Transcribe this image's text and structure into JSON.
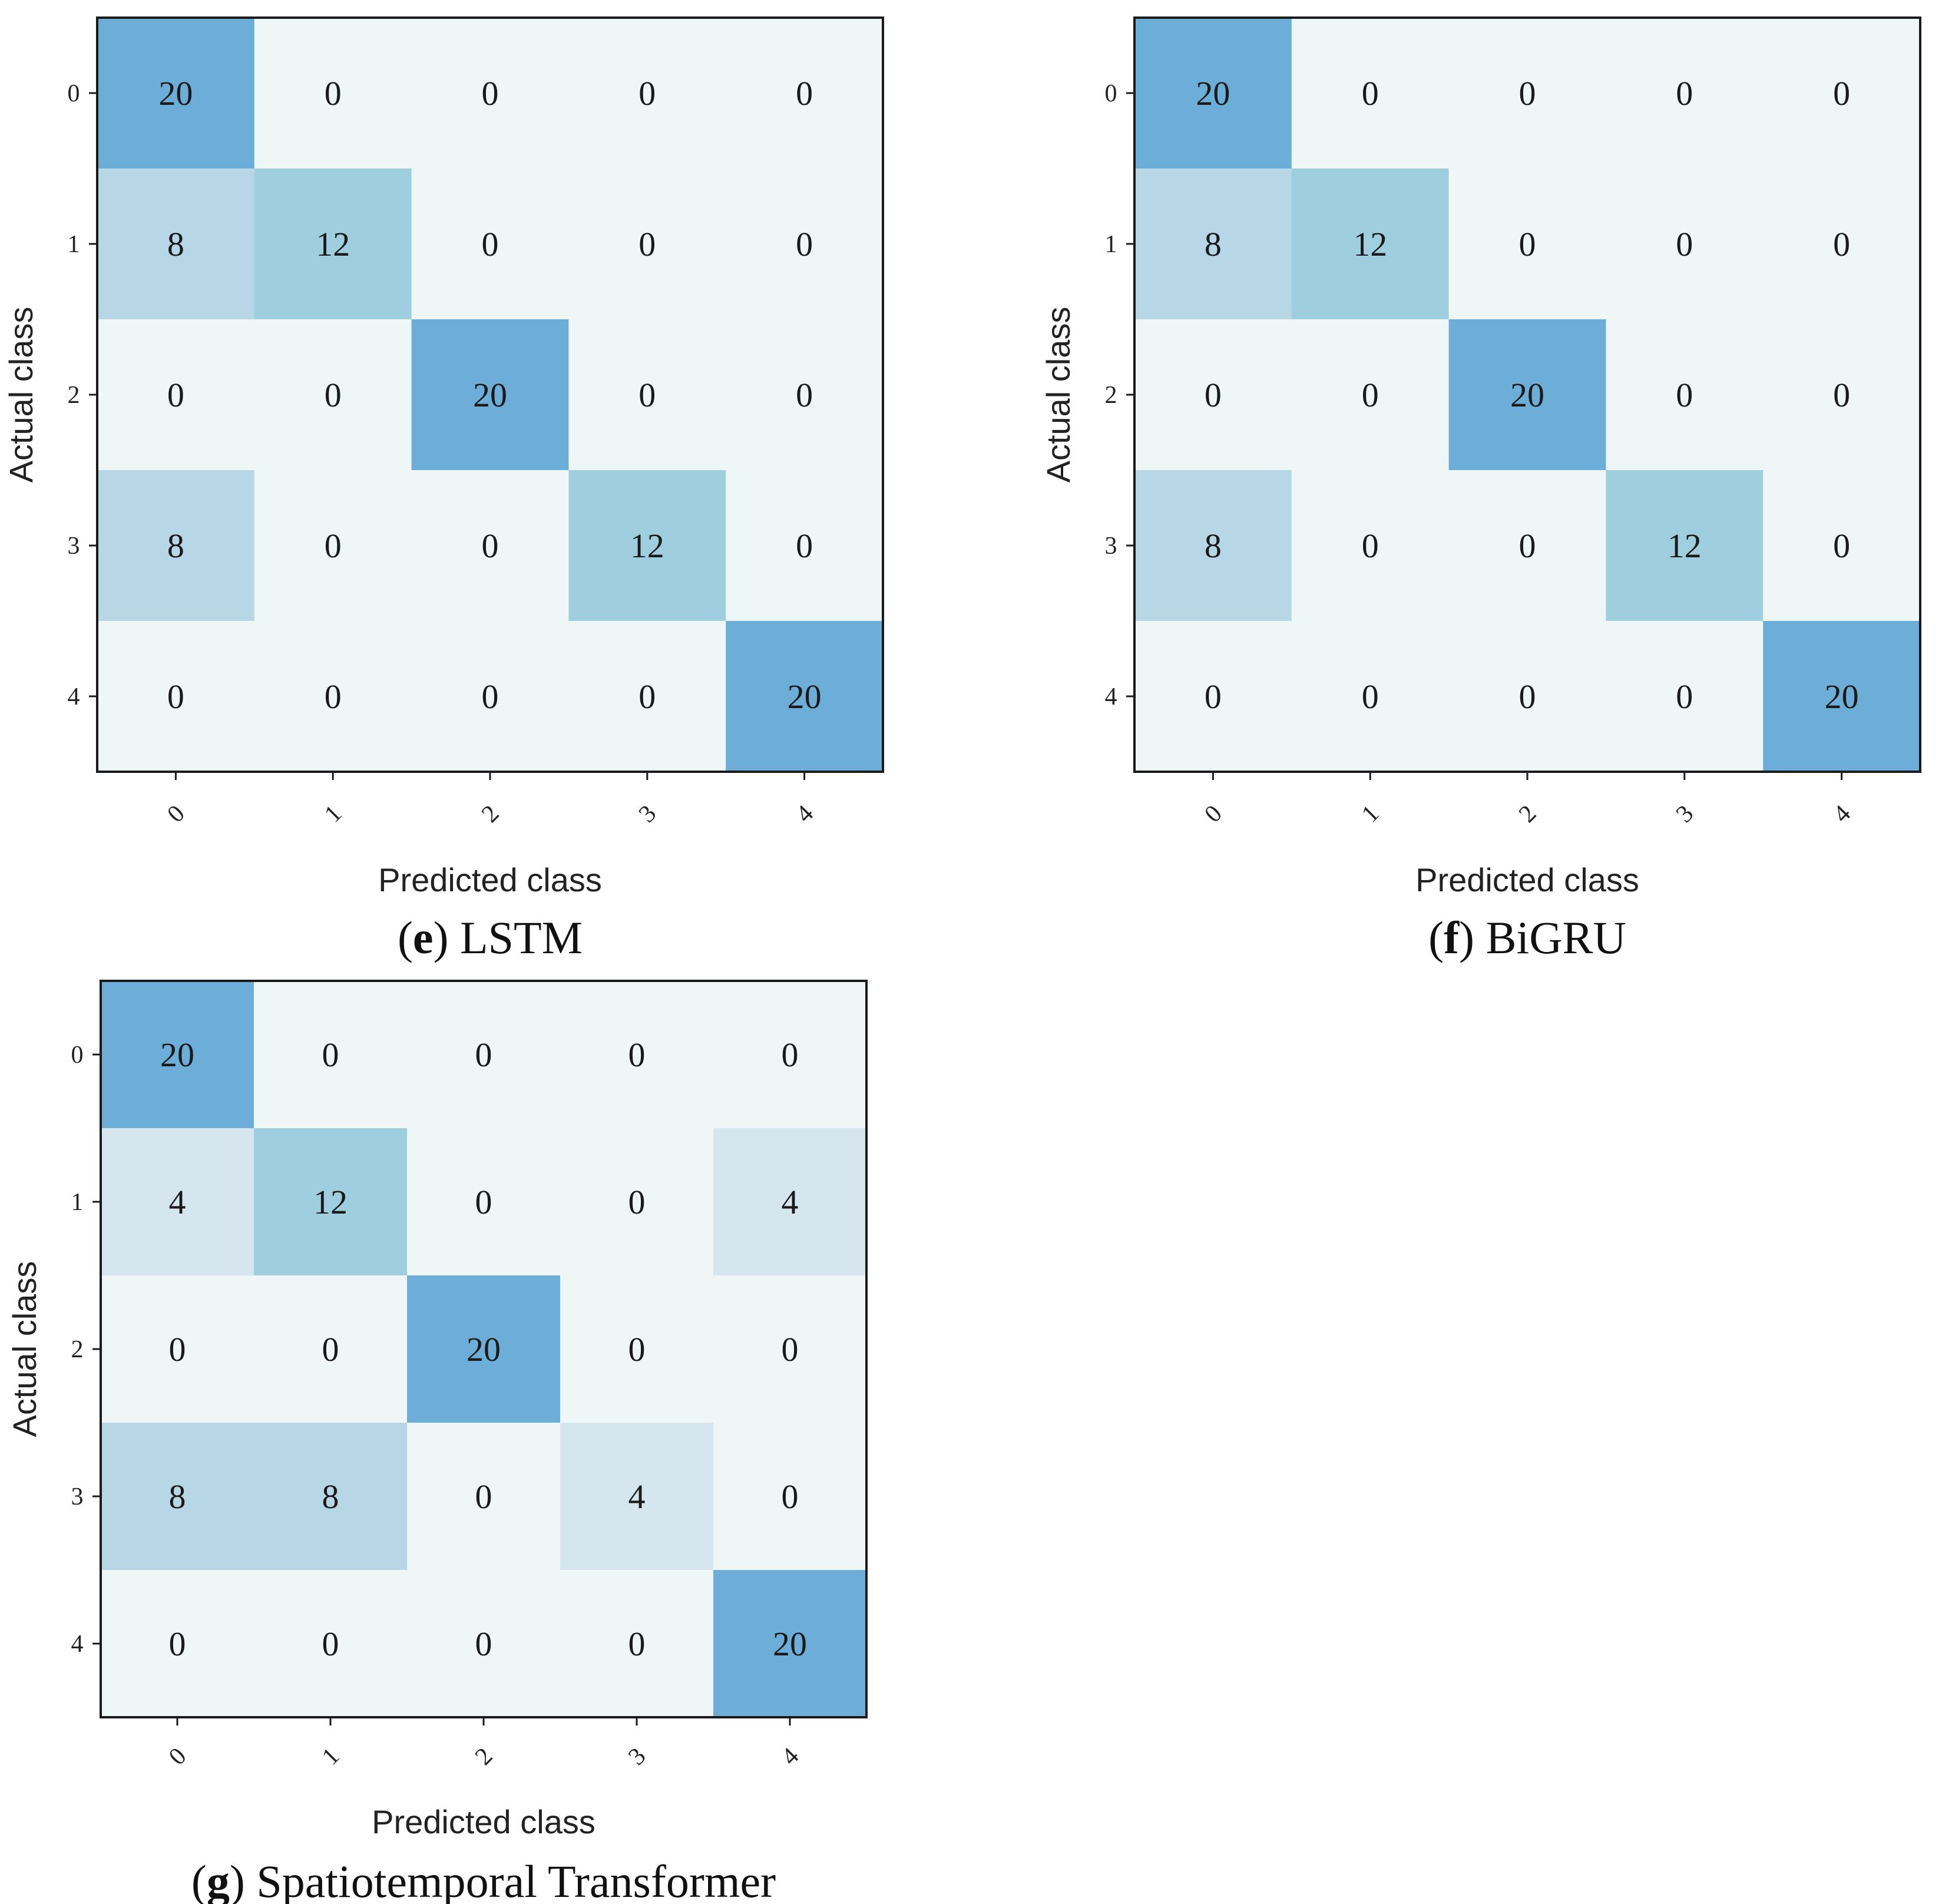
{
  "chart_data": [
    {
      "type": "heatmap",
      "panel": "e",
      "title": "LSTM",
      "xlabel": "Predicted class",
      "ylabel": "Actual class",
      "x_ticks": [
        "0",
        "1",
        "2",
        "3",
        "4"
      ],
      "y_ticks": [
        "0",
        "1",
        "2",
        "3",
        "4"
      ],
      "matrix": [
        [
          20,
          0,
          0,
          0,
          0
        ],
        [
          8,
          12,
          0,
          0,
          0
        ],
        [
          0,
          0,
          20,
          0,
          0
        ],
        [
          8,
          0,
          0,
          12,
          0
        ],
        [
          0,
          0,
          0,
          0,
          20
        ]
      ],
      "value_range": [
        0,
        20
      ]
    },
    {
      "type": "heatmap",
      "panel": "f",
      "title": "BiGRU",
      "xlabel": "Predicted class",
      "ylabel": "Actual class",
      "x_ticks": [
        "0",
        "1",
        "2",
        "3",
        "4"
      ],
      "y_ticks": [
        "0",
        "1",
        "2",
        "3",
        "4"
      ],
      "matrix": [
        [
          20,
          0,
          0,
          0,
          0
        ],
        [
          8,
          12,
          0,
          0,
          0
        ],
        [
          0,
          0,
          20,
          0,
          0
        ],
        [
          8,
          0,
          0,
          12,
          0
        ],
        [
          0,
          0,
          0,
          0,
          20
        ]
      ],
      "value_range": [
        0,
        20
      ]
    },
    {
      "type": "heatmap",
      "panel": "g",
      "title": "Spatiotemporal Transformer",
      "xlabel": "Predicted class",
      "ylabel": "Actual class",
      "x_ticks": [
        "0",
        "1",
        "2",
        "3",
        "4"
      ],
      "y_ticks": [
        "0",
        "1",
        "2",
        "3",
        "4"
      ],
      "matrix": [
        [
          20,
          0,
          0,
          0,
          0
        ],
        [
          4,
          12,
          0,
          0,
          4
        ],
        [
          0,
          0,
          20,
          0,
          0
        ],
        [
          8,
          8,
          0,
          4,
          0
        ],
        [
          0,
          0,
          0,
          0,
          20
        ]
      ],
      "value_range": [
        0,
        20
      ]
    }
  ],
  "colors": {
    "scale": [
      "#eef6f6",
      "#d6e6ef",
      "#b7d7e7",
      "#9fcfde",
      "#6daed8"
    ],
    "frame": "#1a1a1a"
  }
}
